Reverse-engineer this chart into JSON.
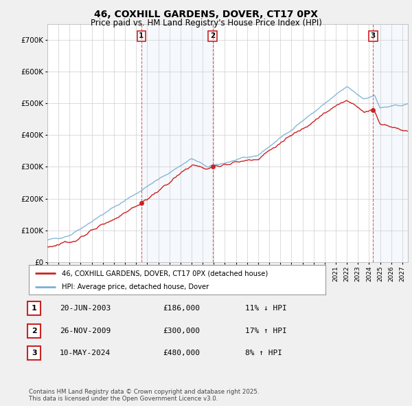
{
  "title": "46, COXHILL GARDENS, DOVER, CT17 0PX",
  "subtitle": "Price paid vs. HM Land Registry's House Price Index (HPI)",
  "hpi_label": "HPI: Average price, detached house, Dover",
  "property_label": "46, COXHILL GARDENS, DOVER, CT17 0PX (detached house)",
  "xlim_start": 1995.0,
  "xlim_end": 2027.5,
  "ylim_min": 0,
  "ylim_max": 750000,
  "yticks": [
    0,
    100000,
    200000,
    300000,
    400000,
    500000,
    600000,
    700000
  ],
  "ytick_labels": [
    "£0",
    "£100K",
    "£200K",
    "£300K",
    "£400K",
    "£500K",
    "£600K",
    "£700K"
  ],
  "transactions": [
    {
      "num": 1,
      "date": "20-JUN-2003",
      "price": 186000,
      "hpi_diff": "11% ↓ HPI",
      "year": 2003.47
    },
    {
      "num": 2,
      "date": "26-NOV-2009",
      "price": 300000,
      "hpi_diff": "17% ↑ HPI",
      "year": 2009.9
    },
    {
      "num": 3,
      "date": "10-MAY-2024",
      "price": 480000,
      "hpi_diff": "8% ↑ HPI",
      "year": 2024.36
    }
  ],
  "hpi_color": "#7ab0d4",
  "property_color": "#cc2222",
  "background_color": "#f0f0f0",
  "plot_bg_color": "#ffffff",
  "grid_color": "#cccccc",
  "shaded_region_color": "#ccddf0",
  "footnote": "Contains HM Land Registry data © Crown copyright and database right 2025.\nThis data is licensed under the Open Government Licence v3.0."
}
